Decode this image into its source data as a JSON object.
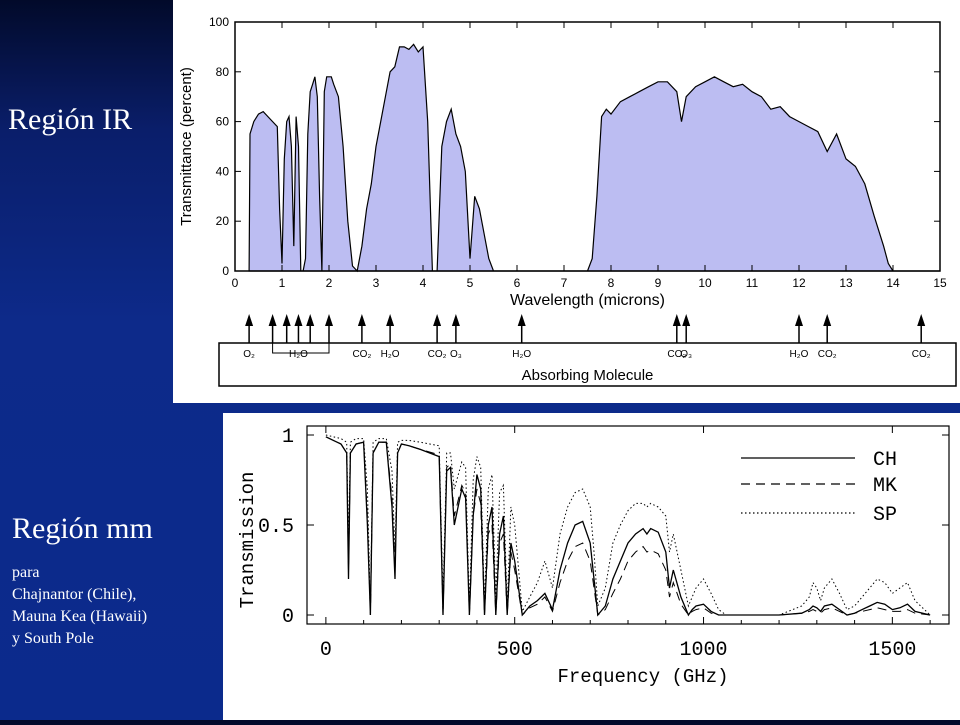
{
  "slide": {
    "region_ir": "Región IR",
    "region_mm": "Región mm",
    "mm_lines": [
      "para",
      "Chajnantor (Chile),",
      "Mauna Kea (Hawaii)",
      "y South Pole"
    ]
  },
  "chart_data": [
    {
      "type": "area",
      "xlabel": "Wavelength (microns)",
      "ylabel": "Transmittance (percent)",
      "xlim": [
        0,
        15
      ],
      "ylim": [
        0,
        100
      ],
      "xticks": [
        0,
        1,
        2,
        3,
        4,
        5,
        6,
        7,
        8,
        9,
        10,
        11,
        12,
        13,
        14,
        15
      ],
      "yticks": [
        0,
        20,
        40,
        60,
        80,
        100
      ],
      "fill_color": "#bcbdf2",
      "x": [
        0.3,
        0.32,
        0.4,
        0.5,
        0.6,
        0.7,
        0.8,
        0.9,
        0.95,
        1.0,
        1.05,
        1.1,
        1.15,
        1.2,
        1.25,
        1.3,
        1.35,
        1.4,
        1.45,
        1.5,
        1.55,
        1.6,
        1.65,
        1.7,
        1.75,
        1.8,
        1.85,
        1.9,
        1.95,
        2.0,
        2.05,
        2.1,
        2.2,
        2.3,
        2.4,
        2.5,
        2.6,
        2.7,
        2.8,
        2.9,
        3.0,
        3.1,
        3.2,
        3.3,
        3.4,
        3.5,
        3.6,
        3.7,
        3.8,
        3.9,
        4.0,
        4.1,
        4.2,
        4.3,
        4.4,
        4.5,
        4.6,
        4.7,
        4.8,
        4.9,
        5.0,
        5.1,
        5.2,
        5.3,
        5.4,
        5.5,
        5.6,
        6.5,
        7.5,
        7.6,
        7.7,
        7.8,
        7.9,
        8.0,
        8.2,
        8.4,
        8.6,
        8.8,
        9.0,
        9.2,
        9.4,
        9.5,
        9.6,
        9.8,
        10.0,
        10.2,
        10.4,
        10.6,
        10.8,
        11.0,
        11.2,
        11.4,
        11.6,
        11.8,
        12.0,
        12.2,
        12.4,
        12.6,
        12.8,
        13.0,
        13.2,
        13.4,
        13.6,
        13.8,
        13.9,
        14.0,
        14.1,
        15.0
      ],
      "y": [
        0,
        55,
        60,
        63,
        64,
        62,
        60,
        58,
        25,
        3,
        45,
        60,
        62,
        50,
        10,
        62,
        50,
        0,
        0,
        5,
        55,
        72,
        75,
        78,
        70,
        30,
        0,
        72,
        78,
        78,
        78,
        75,
        70,
        50,
        20,
        2,
        0,
        10,
        25,
        35,
        50,
        60,
        70,
        80,
        82,
        90,
        90,
        89,
        91,
        88,
        90,
        60,
        0,
        0,
        50,
        60,
        65,
        55,
        50,
        40,
        5,
        30,
        25,
        15,
        5,
        0,
        0,
        0,
        0,
        5,
        30,
        62,
        65,
        63,
        68,
        70,
        72,
        74,
        76,
        76,
        72,
        60,
        70,
        74,
        76,
        78,
        76,
        74,
        75,
        72,
        70,
        65,
        66,
        62,
        60,
        58,
        56,
        48,
        55,
        45,
        42,
        35,
        22,
        10,
        3,
        0,
        0,
        0
      ],
      "molecules": [
        {
          "x": 0.3,
          "label": "O₂"
        },
        {
          "x": 0.8,
          "label": ""
        },
        {
          "x": 1.1,
          "label": ""
        },
        {
          "x": 1.35,
          "label": "H₂O"
        },
        {
          "x": 1.6,
          "label": ""
        },
        {
          "x": 2.0,
          "label": ""
        },
        {
          "x": 2.7,
          "label": "CO₂"
        },
        {
          "x": 3.3,
          "label": "H₂O"
        },
        {
          "x": 4.3,
          "label": "CO₂"
        },
        {
          "x": 4.7,
          "label": "O₃"
        },
        {
          "x": 6.1,
          "label": "H₂O"
        },
        {
          "x": 9.4,
          "label": "CO₂"
        },
        {
          "x": 9.6,
          "label": "O₃"
        },
        {
          "x": 12.0,
          "label": "H₂O"
        },
        {
          "x": 12.6,
          "label": "CO₂"
        },
        {
          "x": 14.6,
          "label": "CO₂"
        }
      ],
      "molecule_axis_label": "Absorbing Molecule"
    },
    {
      "type": "line",
      "xlabel": "Frequency (GHz)",
      "ylabel": "Transmission",
      "xlim": [
        -50,
        1650
      ],
      "ylim": [
        -0.05,
        1.05
      ],
      "xticks": [
        0,
        500,
        1000,
        1500
      ],
      "yticks": [
        0,
        0.5,
        1
      ],
      "ytick_labels": [
        "0",
        "0.5",
        "1"
      ],
      "series": [
        {
          "name": "CH",
          "style": "solid",
          "x": [
            0,
            20,
            40,
            55,
            60,
            65,
            80,
            100,
            110,
            118,
            125,
            140,
            160,
            175,
            183,
            190,
            200,
            220,
            250,
            300,
            310,
            320,
            330,
            340,
            360,
            370,
            380,
            390,
            400,
            410,
            420,
            430,
            440,
            450,
            460,
            470,
            480,
            490,
            500,
            520,
            540,
            560,
            580,
            600,
            620,
            640,
            660,
            680,
            700,
            710,
            720,
            740,
            760,
            780,
            800,
            820,
            840,
            850,
            860,
            880,
            900,
            910,
            920,
            940,
            960,
            970,
            980,
            1000,
            1020,
            1040,
            1060,
            1100,
            1200,
            1260,
            1280,
            1290,
            1300,
            1310,
            1320,
            1340,
            1360,
            1380,
            1400,
            1420,
            1440,
            1460,
            1480,
            1500,
            1520,
            1540,
            1560,
            1600
          ],
          "y": [
            0.99,
            0.97,
            0.95,
            0.9,
            0.2,
            0.9,
            0.95,
            0.96,
            0.5,
            0.0,
            0.9,
            0.96,
            0.96,
            0.6,
            0.2,
            0.9,
            0.95,
            0.94,
            0.92,
            0.88,
            0.0,
            0.8,
            0.82,
            0.5,
            0.7,
            0.65,
            0.0,
            0.55,
            0.78,
            0.7,
            0.0,
            0.5,
            0.6,
            0.0,
            0.45,
            0.55,
            0.0,
            0.4,
            0.3,
            0.0,
            0.05,
            0.08,
            0.12,
            0.03,
            0.25,
            0.4,
            0.5,
            0.52,
            0.4,
            0.2,
            0.0,
            0.05,
            0.2,
            0.3,
            0.4,
            0.45,
            0.48,
            0.45,
            0.48,
            0.46,
            0.35,
            0.15,
            0.25,
            0.1,
            0.0,
            0.03,
            0.05,
            0.06,
            0.02,
            0.0,
            0.0,
            0.0,
            0.0,
            0.01,
            0.03,
            0.05,
            0.04,
            0.02,
            0.05,
            0.06,
            0.03,
            0.0,
            0.01,
            0.03,
            0.05,
            0.07,
            0.06,
            0.03,
            0.04,
            0.06,
            0.02,
            0.0
          ]
        },
        {
          "name": "MK",
          "style": "dashed",
          "x": [
            0,
            20,
            40,
            55,
            60,
            65,
            80,
            100,
            110,
            118,
            125,
            140,
            160,
            175,
            183,
            190,
            200,
            220,
            250,
            300,
            310,
            320,
            330,
            340,
            360,
            370,
            380,
            390,
            400,
            410,
            420,
            430,
            440,
            450,
            460,
            470,
            480,
            490,
            500,
            520,
            540,
            560,
            580,
            600,
            620,
            640,
            660,
            680,
            700,
            710,
            720,
            740,
            760,
            780,
            800,
            820,
            840,
            850,
            860,
            880,
            900,
            910,
            920,
            940,
            960,
            970,
            980,
            1000,
            1020,
            1040,
            1060,
            1100,
            1200,
            1260,
            1280,
            1290,
            1300,
            1310,
            1320,
            1340,
            1360,
            1380,
            1400,
            1420,
            1440,
            1460,
            1480,
            1500,
            1520,
            1540,
            1560,
            1600
          ],
          "y": [
            0.99,
            0.97,
            0.95,
            0.9,
            0.25,
            0.9,
            0.95,
            0.96,
            0.55,
            0.0,
            0.9,
            0.96,
            0.96,
            0.65,
            0.25,
            0.9,
            0.95,
            0.94,
            0.92,
            0.89,
            0.0,
            0.82,
            0.84,
            0.55,
            0.72,
            0.68,
            0.0,
            0.55,
            0.7,
            0.62,
            0.0,
            0.45,
            0.5,
            0.0,
            0.4,
            0.45,
            0.0,
            0.35,
            0.25,
            0.0,
            0.04,
            0.06,
            0.1,
            0.02,
            0.18,
            0.3,
            0.38,
            0.4,
            0.3,
            0.15,
            0.0,
            0.03,
            0.12,
            0.2,
            0.3,
            0.35,
            0.38,
            0.35,
            0.36,
            0.34,
            0.25,
            0.1,
            0.18,
            0.06,
            0.0,
            0.02,
            0.03,
            0.04,
            0.01,
            0.0,
            0.0,
            0.0,
            0.0,
            0.01,
            0.02,
            0.03,
            0.02,
            0.01,
            0.03,
            0.04,
            0.02,
            0.0,
            0.01,
            0.02,
            0.03,
            0.04,
            0.03,
            0.02,
            0.02,
            0.03,
            0.01,
            0.0
          ]
        },
        {
          "name": "SP",
          "style": "dotted",
          "x": [
            0,
            20,
            40,
            55,
            60,
            65,
            80,
            100,
            110,
            118,
            125,
            140,
            160,
            175,
            183,
            190,
            200,
            220,
            250,
            300,
            310,
            320,
            330,
            340,
            360,
            370,
            380,
            390,
            400,
            410,
            420,
            430,
            440,
            450,
            460,
            470,
            480,
            490,
            500,
            520,
            540,
            560,
            580,
            600,
            620,
            640,
            660,
            680,
            700,
            710,
            720,
            740,
            760,
            780,
            800,
            820,
            840,
            850,
            860,
            880,
            900,
            910,
            920,
            940,
            960,
            970,
            980,
            1000,
            1020,
            1040,
            1060,
            1100,
            1200,
            1260,
            1280,
            1290,
            1300,
            1310,
            1320,
            1340,
            1360,
            1380,
            1400,
            1420,
            1440,
            1460,
            1480,
            1500,
            1520,
            1540,
            1560,
            1600
          ],
          "y": [
            1.0,
            0.99,
            0.98,
            0.96,
            0.4,
            0.96,
            0.98,
            0.98,
            0.7,
            0.05,
            0.96,
            0.98,
            0.98,
            0.8,
            0.35,
            0.96,
            0.97,
            0.97,
            0.96,
            0.94,
            0.1,
            0.9,
            0.9,
            0.7,
            0.85,
            0.82,
            0.05,
            0.75,
            0.88,
            0.82,
            0.05,
            0.7,
            0.78,
            0.1,
            0.68,
            0.72,
            0.05,
            0.6,
            0.5,
            0.02,
            0.1,
            0.18,
            0.3,
            0.15,
            0.45,
            0.6,
            0.68,
            0.7,
            0.6,
            0.35,
            0.05,
            0.15,
            0.4,
            0.5,
            0.58,
            0.62,
            0.62,
            0.6,
            0.62,
            0.6,
            0.55,
            0.35,
            0.45,
            0.25,
            0.05,
            0.1,
            0.15,
            0.2,
            0.12,
            0.03,
            0.0,
            0.0,
            0.0,
            0.05,
            0.1,
            0.18,
            0.15,
            0.08,
            0.15,
            0.2,
            0.12,
            0.03,
            0.05,
            0.1,
            0.15,
            0.2,
            0.18,
            0.12,
            0.15,
            0.18,
            0.08,
            0.0
          ]
        }
      ]
    }
  ]
}
